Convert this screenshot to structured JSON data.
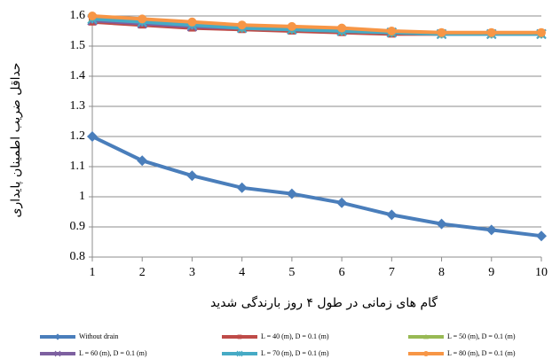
{
  "chart_data": {
    "type": "line",
    "y_label": "حداقل ضریب اطمینان پایداری",
    "x_label": "گام های زمانی در طول ۴ روز بارندگی شدید",
    "x": [
      1,
      2,
      3,
      4,
      5,
      6,
      7,
      8,
      9,
      10
    ],
    "xlim": [
      1,
      10
    ],
    "xticks": [
      1,
      2,
      3,
      4,
      5,
      6,
      7,
      8,
      9,
      10
    ],
    "ylim": [
      0.8,
      1.6
    ],
    "yticks": [
      0.8,
      0.9,
      1,
      1.1,
      1.2,
      1.3,
      1.4,
      1.5,
      1.6
    ],
    "grid": true,
    "legend": "bottom",
    "series": [
      {
        "name": "Without drain",
        "color": "#4a7ebb",
        "marker": "diamond",
        "values": [
          1.2,
          1.12,
          1.07,
          1.03,
          1.01,
          0.98,
          0.94,
          0.91,
          0.89,
          0.87
        ]
      },
      {
        "name": "L = 40 (m), D = 0.1 (m)",
        "color": "#be4b48",
        "marker": "square",
        "values": [
          1.58,
          1.57,
          1.56,
          1.555,
          1.55,
          1.545,
          1.54,
          1.54,
          1.54,
          1.54
        ]
      },
      {
        "name": "L = 50 (m), D = 0.1 (m)",
        "color": "#98b954",
        "marker": "triangle",
        "values": [
          1.59,
          1.58,
          1.57,
          1.56,
          1.555,
          1.55,
          1.545,
          1.54,
          1.54,
          1.54
        ]
      },
      {
        "name": "L = 60 (m), D = 0.1 (m)",
        "color": "#7d60a0",
        "marker": "x",
        "values": [
          1.585,
          1.575,
          1.565,
          1.56,
          1.555,
          1.55,
          1.545,
          1.54,
          1.54,
          1.54
        ]
      },
      {
        "name": "L = 70 (m), D = 0.1 (m)",
        "color": "#46aac5",
        "marker": "star",
        "values": [
          1.59,
          1.58,
          1.57,
          1.56,
          1.555,
          1.55,
          1.545,
          1.54,
          1.54,
          1.54
        ]
      },
      {
        "name": "L = 80 (m), D = 0.1 (m)",
        "color": "#f79646",
        "marker": "circle",
        "values": [
          1.6,
          1.59,
          1.58,
          1.57,
          1.565,
          1.56,
          1.55,
          1.545,
          1.545,
          1.545
        ]
      }
    ]
  }
}
